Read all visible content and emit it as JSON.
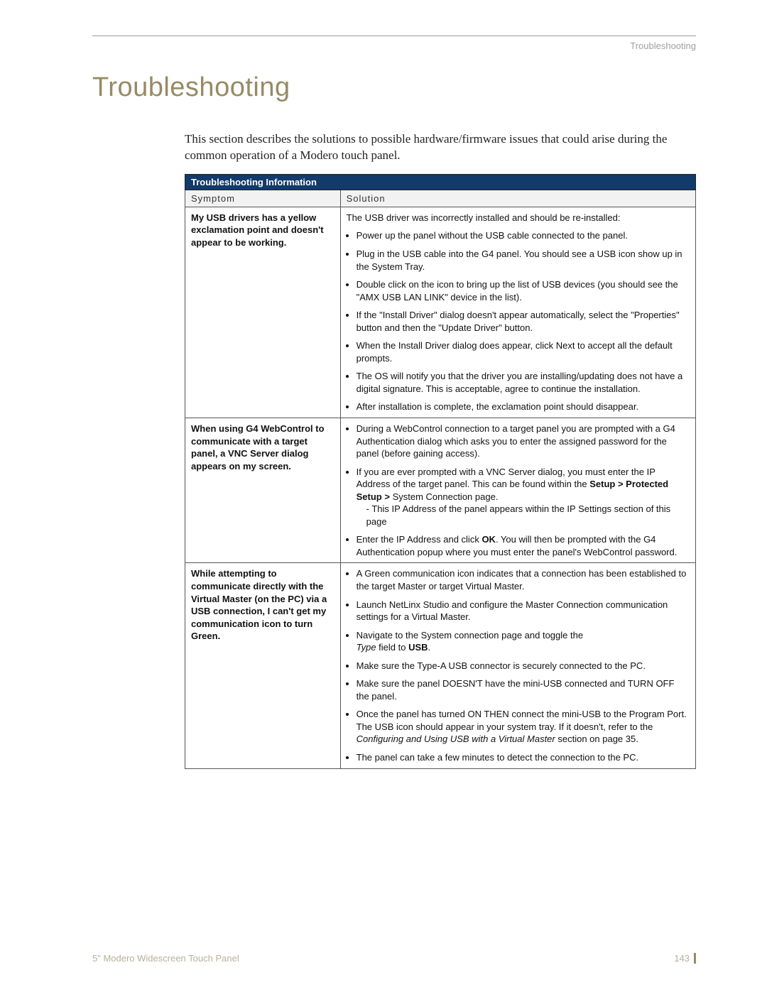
{
  "header": {
    "label": "Troubleshooting"
  },
  "title": "Troubleshooting",
  "intro": "This section describes the solutions to possible hardware/firmware issues that could arise during the common operation of a Modero touch panel.",
  "table": {
    "banner": "Troubleshooting Information",
    "col_symptom": "Symptom",
    "col_solution": "Solution",
    "rows": [
      {
        "symptom": "My USB drivers has a yellow exclamation point and doesn't appear to be working.",
        "lead": "The USB driver was incorrectly installed and should be re-installed:",
        "b1": "Power up the panel without the USB cable connected to the panel.",
        "b2": "Plug in the USB cable into the G4 panel. You should see a USB icon show up in the System Tray.",
        "b3": "Double click on the icon to bring up the list of USB devices (you should see the \"AMX USB LAN LINK\" device in the list).",
        "b4": "If the \"Install Driver\" dialog doesn't appear automatically, select the \"Properties\" button and then the \"Update Driver\" button.",
        "b5": "When the Install Driver dialog does appear, click Next to accept all the default prompts.",
        "b6": "The OS will notify you that the driver you are installing/updating does not have a digital signature. This is acceptable, agree to continue the installation.",
        "b7": "After installation is complete, the exclamation point should disappear."
      },
      {
        "symptom": "When using G4 WebControl to communicate with a target panel, a VNC Server dialog appears on my screen.",
        "b1": "During a WebControl connection to a target panel you are prompted with a G4 Authentication dialog which asks you to enter the assigned password for the panel (before gaining access).",
        "b2a": "If you are ever prompted with a VNC Server dialog, you must enter the IP Address of the target panel. This can be found within the ",
        "b2b": "Setup > Protected Setup > ",
        "b2c": "System Connection page.",
        "b2d": "- This IP Address of the panel appears within the IP Settings section of this page",
        "b3a": "Enter the IP Address and click ",
        "b3b": "OK",
        "b3c": ". You will then be prompted with the G4 Authentication popup where you must enter the panel's WebControl password."
      },
      {
        "symptom": "While attempting to communicate directly with the Virtual Master (on the PC) via a USB connection, I can't get my communication icon to turn Green.",
        "b1": "A Green communication icon indicates that a connection has been established to the target Master or target Virtual Master.",
        "b2": "Launch NetLinx Studio and configure the Master Connection communication settings for a Virtual Master.",
        "b3a": "Navigate to the System connection page and toggle the",
        "b3b": "Type",
        "b3c": " field to ",
        "b3d": "USB",
        "b3e": ".",
        "b4": "Make sure the Type-A USB connector is securely connected to the PC.",
        "b5": "Make sure the panel DOESN'T have the mini-USB connected and TURN OFF the panel.",
        "b6a": "Once the panel has turned ON THEN connect the mini-USB to the Program Port. The USB icon should appear in your system tray. If it doesn't, refer to the ",
        "b6b": "Configuring and Using USB with a Virtual Master",
        "b6c": " section on page 35.",
        "b7": "The panel can take a few minutes to detect the connection to the PC."
      }
    ]
  },
  "footer": {
    "doc": "5\" Modero Widescreen Touch Panel",
    "page": "143"
  },
  "colors": {
    "accent": "#978a65",
    "banner_bg": "#123a6b",
    "banner_fg": "#ffffff",
    "rule": "#999999",
    "muted": "#b9b09a"
  }
}
